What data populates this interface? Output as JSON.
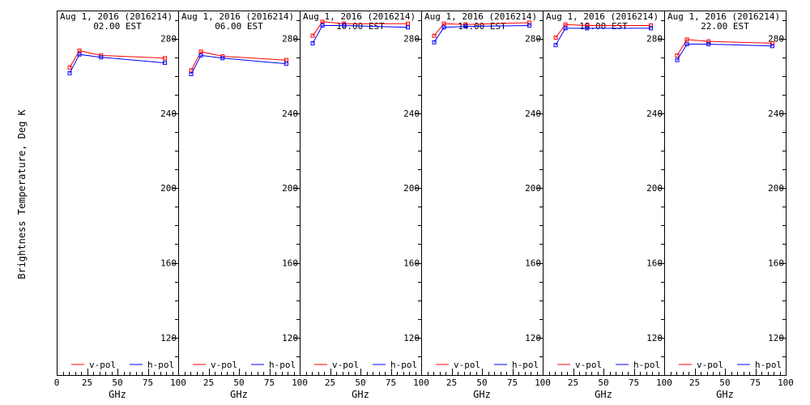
{
  "figure": {
    "ylabel": "Brightness Temperature, Deg K",
    "xlabel": "GHz",
    "date_line": "Aug  1, 2016 (2016214)"
  },
  "chart_data": [
    {
      "type": "line",
      "title": "Aug  1, 2016 (2016214)",
      "subtitle": "02.00 EST",
      "xlabel": "GHz",
      "ylabel": "Brightness Temperature, Deg K",
      "xlim": [
        0,
        100
      ],
      "ylim": [
        100,
        295
      ],
      "x_ticks": [
        0,
        25,
        50,
        75,
        100
      ],
      "y_ticks": [
        120,
        160,
        200,
        240,
        280
      ],
      "legend_placement": "bottom",
      "x": [
        10.7,
        18.7,
        36.5,
        89.0
      ],
      "series": [
        {
          "name": "v-pol",
          "color": "#ff0000",
          "values": [
            264.5,
            273.5,
            271.0,
            269.5
          ]
        },
        {
          "name": "h-pol",
          "color": "#0000ff",
          "values": [
            261.5,
            271.5,
            270.0,
            267.0
          ]
        }
      ]
    },
    {
      "type": "line",
      "title": "Aug  1, 2016 (2016214)",
      "subtitle": "06.00 EST",
      "xlabel": "GHz",
      "ylabel": "",
      "xlim": [
        0,
        100
      ],
      "ylim": [
        100,
        295
      ],
      "x_ticks": [
        0,
        25,
        50,
        75,
        100
      ],
      "y_ticks": [
        120,
        160,
        200,
        240,
        280
      ],
      "legend_placement": "bottom",
      "x": [
        10.7,
        18.7,
        36.5,
        89.0
      ],
      "series": [
        {
          "name": "v-pol",
          "color": "#ff0000",
          "values": [
            263.0,
            273.0,
            270.5,
            268.5
          ]
        },
        {
          "name": "h-pol",
          "color": "#0000ff",
          "values": [
            261.0,
            271.0,
            269.5,
            266.5
          ]
        }
      ]
    },
    {
      "type": "line",
      "title": "Aug  1, 2016 (2016214)",
      "subtitle": "10.00 EST",
      "xlabel": "GHz",
      "ylabel": "",
      "xlim": [
        0,
        100
      ],
      "ylim": [
        100,
        295
      ],
      "x_ticks": [
        0,
        25,
        50,
        75,
        100
      ],
      "y_ticks": [
        120,
        160,
        200,
        240,
        280
      ],
      "legend_placement": "bottom",
      "x": [
        10.7,
        18.7,
        36.5,
        89.0
      ],
      "series": [
        {
          "name": "v-pol",
          "color": "#ff0000",
          "values": [
            281.5,
            289.0,
            288.0,
            288.0
          ]
        },
        {
          "name": "h-pol",
          "color": "#0000ff",
          "values": [
            277.5,
            287.0,
            287.0,
            286.0
          ]
        }
      ]
    },
    {
      "type": "line",
      "title": "Aug  1, 2016 (2016214)",
      "subtitle": "14.00 EST",
      "xlabel": "GHz",
      "ylabel": "",
      "xlim": [
        0,
        100
      ],
      "ylim": [
        100,
        295
      ],
      "x_ticks": [
        0,
        25,
        50,
        75,
        100
      ],
      "y_ticks": [
        120,
        160,
        200,
        240,
        280
      ],
      "legend_placement": "bottom",
      "x": [
        10.7,
        18.7,
        36.5,
        89.0
      ],
      "series": [
        {
          "name": "v-pol",
          "color": "#ff0000",
          "values": [
            281.5,
            288.0,
            287.5,
            288.5
          ]
        },
        {
          "name": "h-pol",
          "color": "#0000ff",
          "values": [
            278.0,
            286.0,
            286.5,
            287.0
          ]
        }
      ]
    },
    {
      "type": "line",
      "title": "Aug  1, 2016 (2016214)",
      "subtitle": "18.00 EST",
      "xlabel": "GHz",
      "ylabel": "",
      "xlim": [
        0,
        100
      ],
      "ylim": [
        100,
        295
      ],
      "x_ticks": [
        0,
        25,
        50,
        75,
        100
      ],
      "y_ticks": [
        120,
        160,
        200,
        240,
        280
      ],
      "legend_placement": "bottom",
      "x": [
        10.7,
        18.7,
        36.5,
        89.0
      ],
      "series": [
        {
          "name": "v-pol",
          "color": "#ff0000",
          "values": [
            280.5,
            287.5,
            287.0,
            287.0
          ]
        },
        {
          "name": "h-pol",
          "color": "#0000ff",
          "values": [
            276.5,
            285.5,
            285.5,
            285.5
          ]
        }
      ]
    },
    {
      "type": "line",
      "title": "Aug  1, 2016 (2016214)",
      "subtitle": "22.00 EST",
      "xlabel": "GHz",
      "ylabel": "",
      "xlim": [
        0,
        100
      ],
      "ylim": [
        100,
        295
      ],
      "x_ticks": [
        0,
        25,
        50,
        75,
        100
      ],
      "y_ticks": [
        120,
        160,
        200,
        240,
        280
      ],
      "legend_placement": "bottom",
      "x": [
        10.7,
        18.7,
        36.5,
        89.0
      ],
      "series": [
        {
          "name": "v-pol",
          "color": "#ff0000",
          "values": [
            271.0,
            279.5,
            278.5,
            277.5
          ]
        },
        {
          "name": "h-pol",
          "color": "#0000ff",
          "values": [
            268.5,
            277.0,
            277.0,
            276.0
          ]
        }
      ]
    }
  ]
}
